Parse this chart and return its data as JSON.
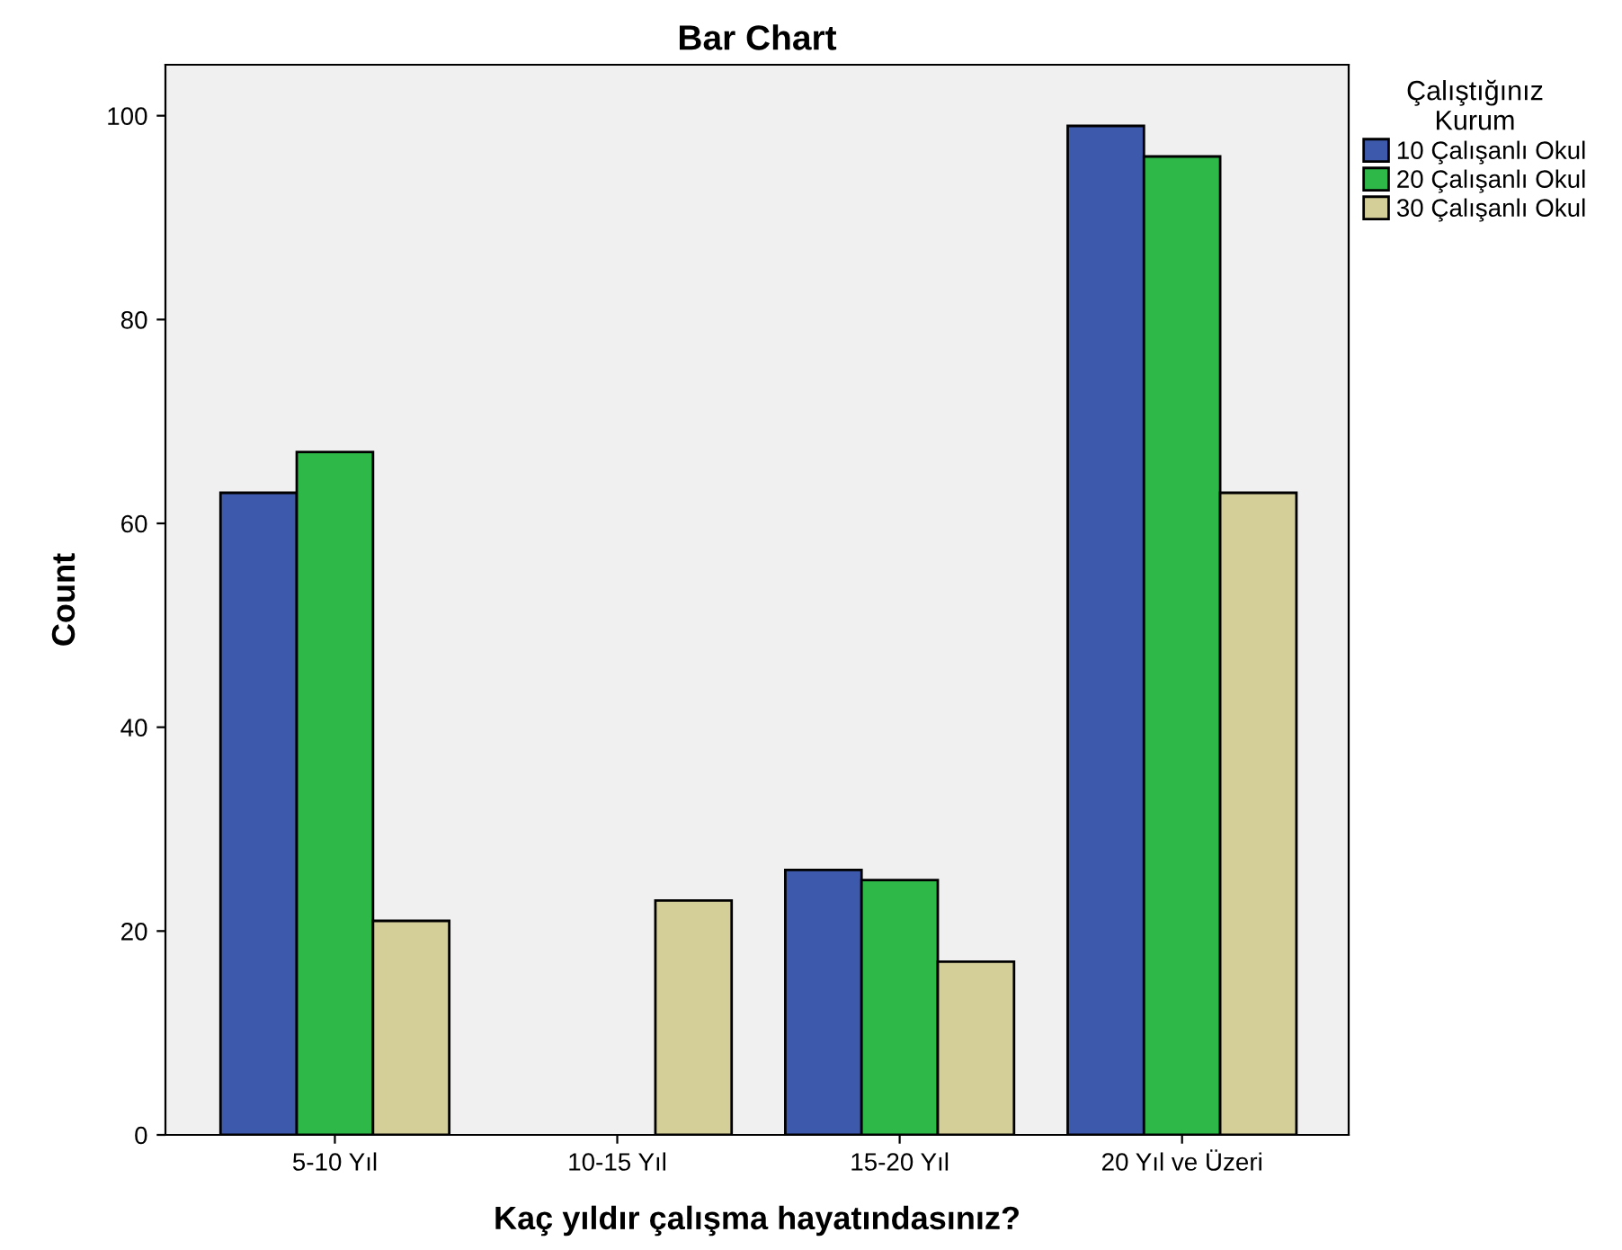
{
  "chart_data": {
    "type": "bar",
    "title": "Bar Chart",
    "xlabel": "Kaç yıldır çalışma hayatındasınız?",
    "ylabel": "Count",
    "legend_title": "Çalıştığınız\nKurum",
    "categories": [
      "5-10 Yıl",
      "10-15 Yıl",
      "15-20 Yıl",
      "20 Yıl ve Üzeri"
    ],
    "series": [
      {
        "name": "10 Çalışanlı Okul",
        "color": "#3d59ab",
        "values": [
          63,
          null,
          26,
          99
        ]
      },
      {
        "name": "20 Çalışanlı Okul",
        "color": "#2eb848",
        "values": [
          67,
          null,
          25,
          96
        ]
      },
      {
        "name": "30 Çalışanlı Okul",
        "color": "#d4cf98",
        "values": [
          21,
          23,
          17,
          63
        ]
      }
    ],
    "ylim": [
      0,
      105
    ],
    "yticks": [
      0,
      20,
      40,
      60,
      80,
      100
    ],
    "grid": false,
    "legend": "top right"
  }
}
